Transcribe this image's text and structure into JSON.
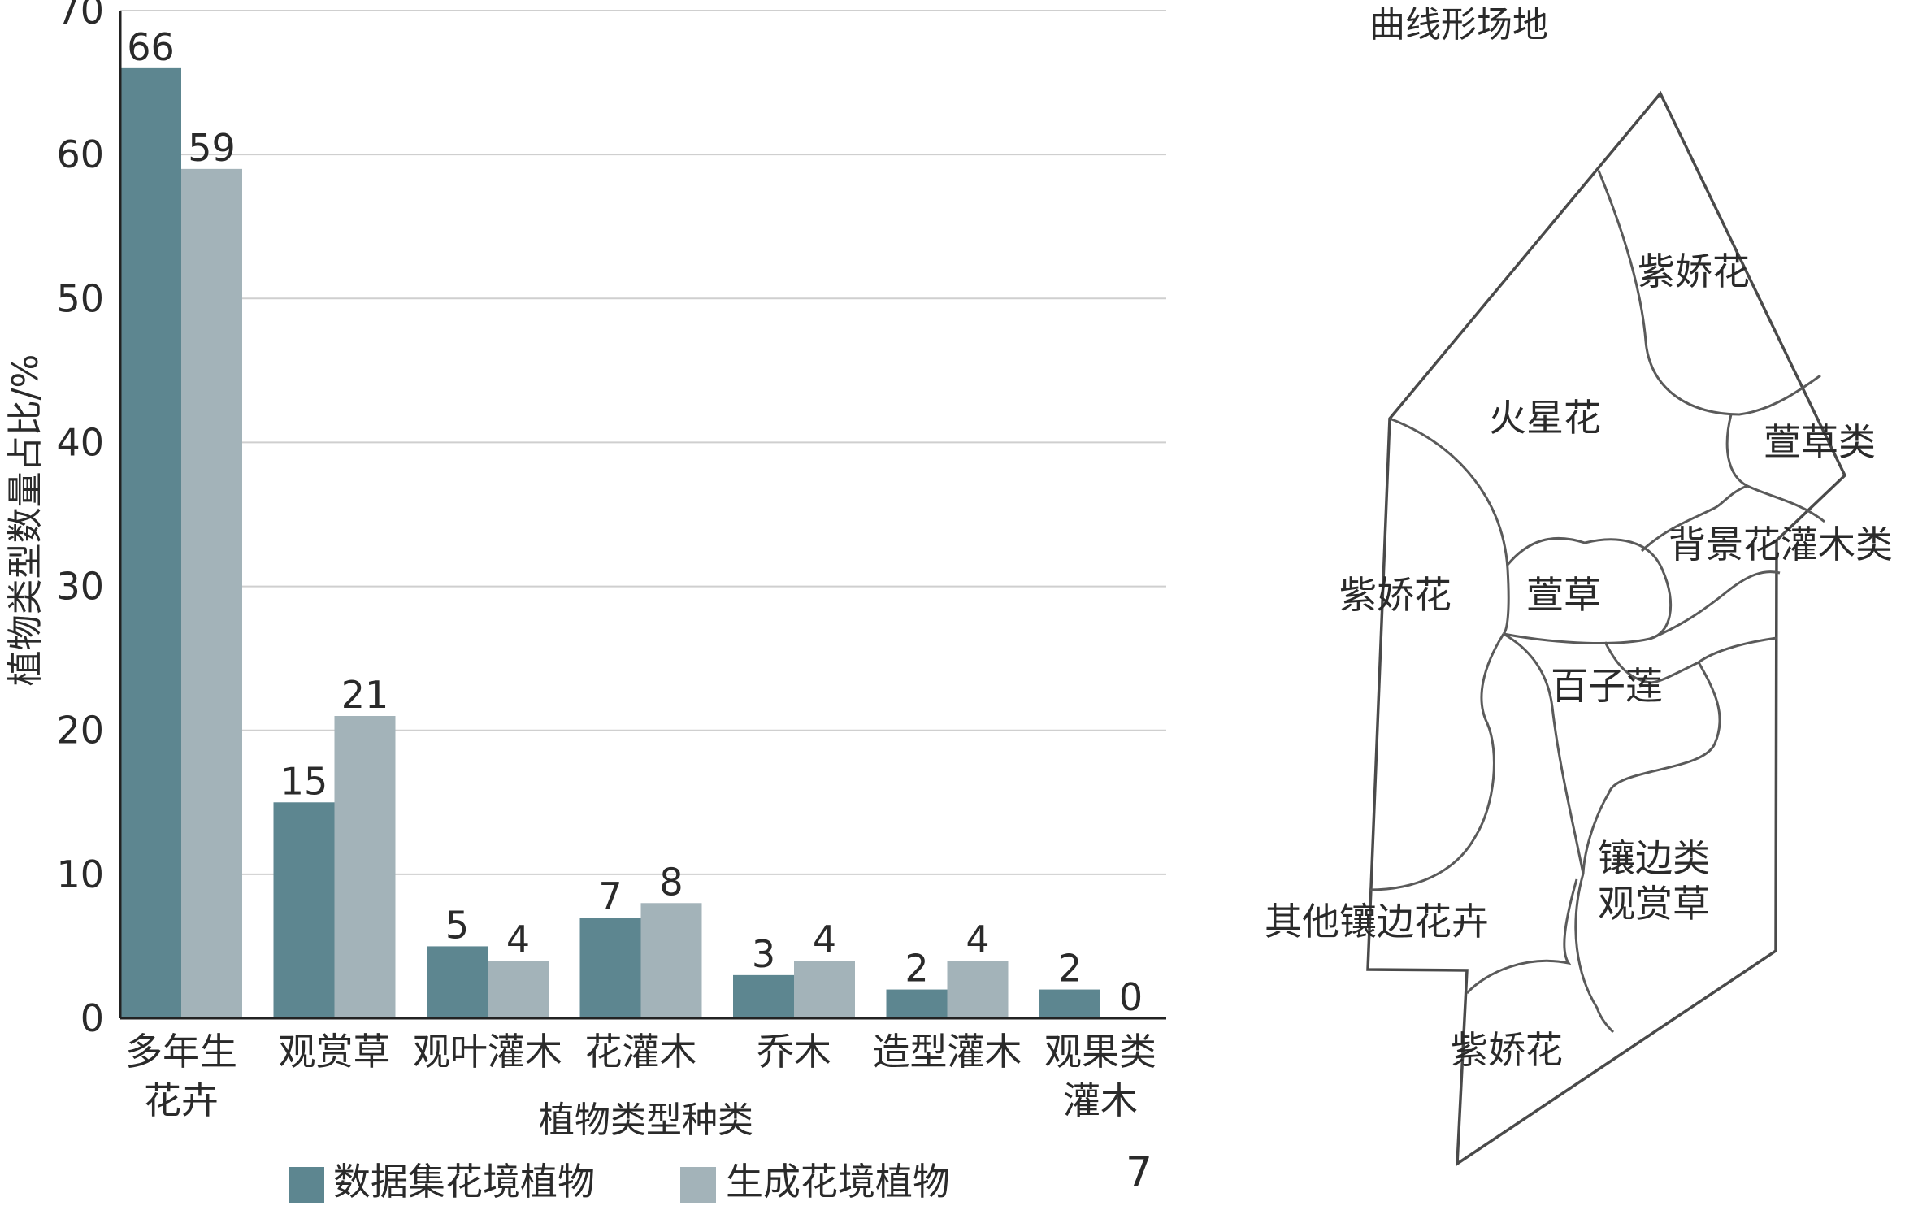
{
  "chart_data": {
    "type": "bar",
    "categories": [
      [
        "多年生",
        "花卉"
      ],
      [
        "观赏草"
      ],
      [
        "观叶灌木"
      ],
      [
        "花灌木"
      ],
      [
        "乔木"
      ],
      [
        "造型灌木"
      ],
      [
        "观果类",
        "灌木"
      ]
    ],
    "series": [
      {
        "name": "数据集花境植物",
        "values": [
          66,
          15,
          5,
          7,
          3,
          2,
          2
        ],
        "color": "#5d8690"
      },
      {
        "name": "生成花境植物",
        "values": [
          59,
          21,
          4,
          8,
          4,
          4,
          0
        ],
        "color": "#a3b3b9"
      }
    ],
    "xlabel": "植物类型种类",
    "ylabel": "植物类型数量占比/%",
    "ylim": [
      0,
      70
    ],
    "yticks": [
      0,
      10,
      20,
      30,
      40,
      50,
      60,
      70
    ],
    "grid": true,
    "legend": "bottom"
  },
  "panel_number": "7",
  "map": {
    "title": "曲线形场地",
    "labels": {
      "zijiaohua_top": "紫娇花",
      "huoxinghua": "火星花",
      "xuancaolei": "萱草类",
      "beijing": "背景花灌木类",
      "zijiaohua_left": "紫娇花",
      "xuancao": "萱草",
      "baizilian": "百子莲",
      "xiangbian_1": "镶边类",
      "xiangbian_2": "观赏草",
      "qita": "其他镶边花卉",
      "zijiaohua_bottom": "紫娇花"
    }
  }
}
